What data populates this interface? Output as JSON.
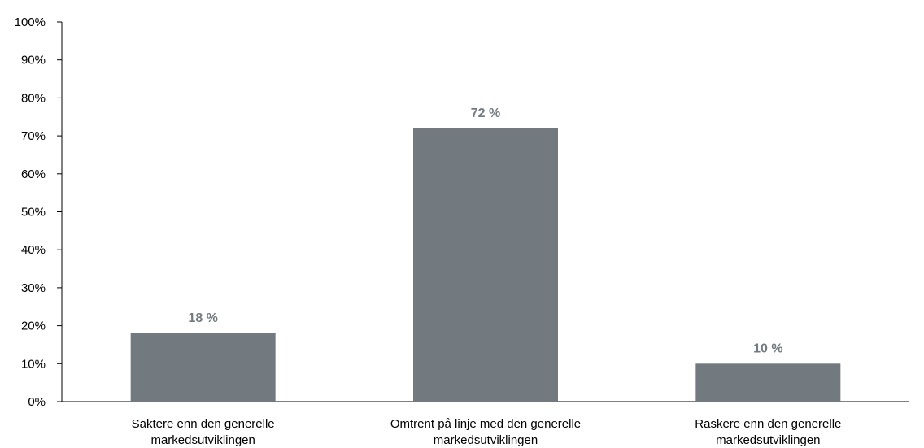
{
  "chart_data": {
    "type": "bar",
    "title": "",
    "xlabel": "",
    "ylabel": "",
    "categories": [
      [
        "Saktere enn den generelle",
        "markedsutviklingen"
      ],
      [
        "Omtrent på linje med den generelle",
        "markedsutviklingen"
      ],
      [
        "Raskere enn den generelle",
        "markedsutviklingen"
      ]
    ],
    "values": [
      18,
      72,
      10
    ],
    "data_labels": [
      "18 %",
      "72 %",
      "10 %"
    ],
    "ylim": [
      0,
      100
    ],
    "yticks": [
      0,
      10,
      20,
      30,
      40,
      50,
      60,
      70,
      80,
      90,
      100
    ],
    "ytick_labels": [
      "0%",
      "10%",
      "20%",
      "30%",
      "40%",
      "50%",
      "60%",
      "70%",
      "80%",
      "90%",
      "100%"
    ],
    "grid": false,
    "legend": "none",
    "colors": {
      "bar": "#72797f",
      "data_label": "#72797f",
      "axis": "#000000"
    }
  }
}
